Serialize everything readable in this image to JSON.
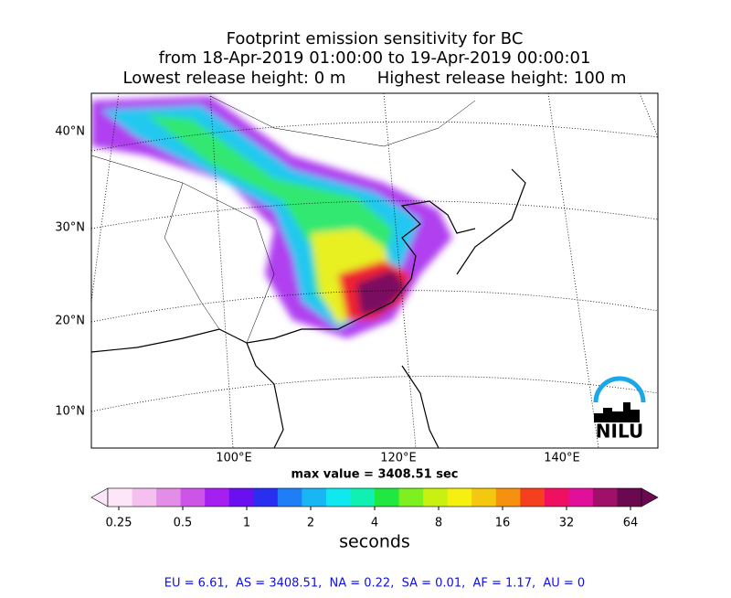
{
  "header": {
    "title_lines": [
      "Footprint emission sensitivity for BC",
      "from 18-Apr-2019 01:00:00 to 19-Apr-2019 00:00:01",
      "Lowest release height: 0 m      Highest release height: 100 m"
    ]
  },
  "map": {
    "lat_labels": [
      "40°N",
      "30°N",
      "20°N",
      "10°N"
    ],
    "lon_labels": [
      "100°E",
      "120°E",
      "140°E"
    ],
    "max_value": "max value = 3408.51 sec",
    "logo": "NILU"
  },
  "colorbar": {
    "ticks": [
      0.25,
      0.5,
      1,
      2,
      4,
      8,
      16,
      32,
      64
    ],
    "label": "seconds",
    "colors": [
      "#fde6f8",
      "#f5c0ef",
      "#e38de6",
      "#cc55e8",
      "#a51ff0",
      "#6a10f0",
      "#2a2ef0",
      "#1f7df5",
      "#19b6f5",
      "#10e8f0",
      "#10f0b0",
      "#20e840",
      "#7ef020",
      "#c8f010",
      "#f5f010",
      "#f5c810",
      "#f59010",
      "#f54020",
      "#f01060",
      "#e0109a",
      "#a0106a",
      "#6a0850"
    ]
  },
  "footer": {
    "text": "EU = 6.61,  AS = 3408.51,  NA = 0.22,  SA = 0.01,  AF = 1.17,  AU = 0"
  }
}
